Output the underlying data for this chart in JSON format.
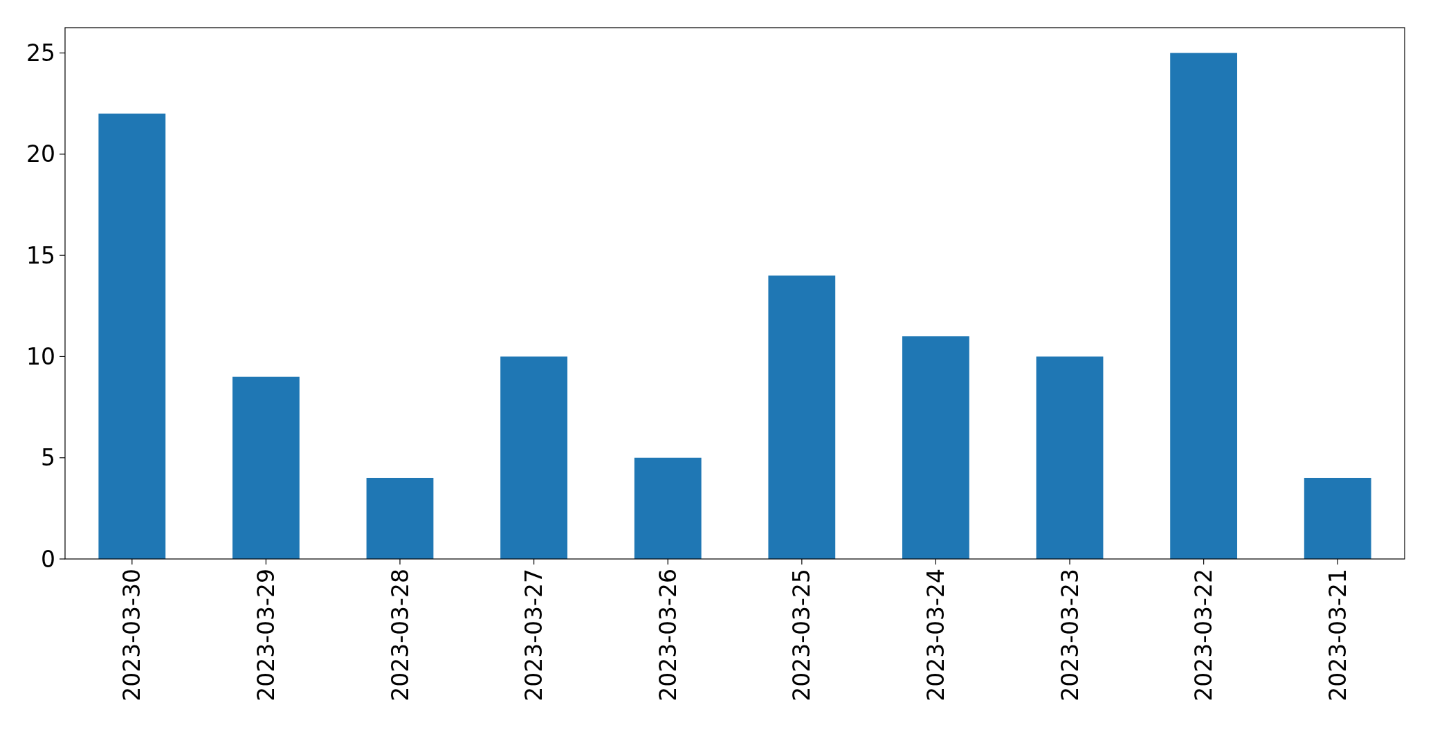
{
  "chart_data": {
    "type": "bar",
    "categories": [
      "2023-03-30",
      "2023-03-29",
      "2023-03-28",
      "2023-03-27",
      "2023-03-26",
      "2023-03-25",
      "2023-03-24",
      "2023-03-23",
      "2023-03-22",
      "2023-03-21"
    ],
    "values": [
      22,
      9,
      4,
      10,
      5,
      14,
      11,
      10,
      25,
      4
    ],
    "color": "#1f77b4",
    "ylim": [
      0,
      26.25
    ],
    "yticks": [
      0,
      5,
      10,
      15,
      20,
      25
    ],
    "grid": false
  }
}
